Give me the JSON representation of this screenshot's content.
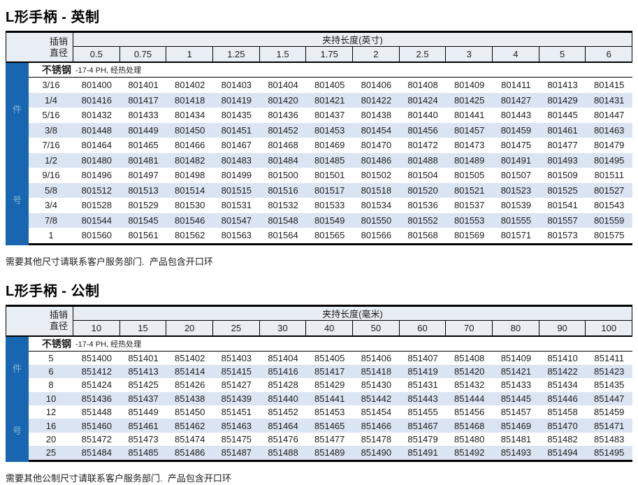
{
  "colors": {
    "sidebar_blue": "#1766af",
    "sidebar_text": "#85b7de",
    "header_bg": "#e9edf4",
    "stripe_bg": "#dbe4f2",
    "border": "#000000"
  },
  "sections": [
    {
      "title": "L形手柄 - 英制",
      "pin_label_line1": "插销",
      "pin_label_line2": "直径",
      "span_header": "夹持长度(英寸)",
      "columns": [
        "0.5",
        "0.75",
        "1",
        "1.25",
        "1.5",
        "1.75",
        "2",
        "2.5",
        "3",
        "4",
        "5",
        "6"
      ],
      "material": "不锈钢",
      "material_note": "-17-4 PH, 经热处理",
      "sidebar_top": "件",
      "sidebar_bottom": "号",
      "rows": [
        {
          "label": "3/16",
          "cells": [
            "801400",
            "801401",
            "801402",
            "801403",
            "801404",
            "801405",
            "801406",
            "801408",
            "801409",
            "801411",
            "801413",
            "801415"
          ]
        },
        {
          "label": "1/4",
          "cells": [
            "801416",
            "801417",
            "801418",
            "801419",
            "801420",
            "801421",
            "801422",
            "801424",
            "801425",
            "801427",
            "801429",
            "801431"
          ]
        },
        {
          "label": "5/16",
          "cells": [
            "801432",
            "801433",
            "801434",
            "801435",
            "801436",
            "801437",
            "801438",
            "801440",
            "801441",
            "801443",
            "801445",
            "801447"
          ]
        },
        {
          "label": "3/8",
          "cells": [
            "801448",
            "801449",
            "801450",
            "801451",
            "801452",
            "801453",
            "801454",
            "801456",
            "801457",
            "801459",
            "801461",
            "801463"
          ]
        },
        {
          "label": "7/16",
          "cells": [
            "801464",
            "801465",
            "801466",
            "801467",
            "801468",
            "801469",
            "801470",
            "801472",
            "801473",
            "801475",
            "801477",
            "801479"
          ]
        },
        {
          "label": "1/2",
          "cells": [
            "801480",
            "801481",
            "801482",
            "801483",
            "801484",
            "801485",
            "801486",
            "801488",
            "801489",
            "801491",
            "801493",
            "801495"
          ]
        },
        {
          "label": "9/16",
          "cells": [
            "801496",
            "801497",
            "801498",
            "801499",
            "801500",
            "801501",
            "801502",
            "801504",
            "801505",
            "801507",
            "801509",
            "801511"
          ]
        },
        {
          "label": "5/8",
          "cells": [
            "801512",
            "801513",
            "801514",
            "801515",
            "801516",
            "801517",
            "801518",
            "801520",
            "801521",
            "801523",
            "801525",
            "801527"
          ]
        },
        {
          "label": "3/4",
          "cells": [
            "801528",
            "801529",
            "801530",
            "801531",
            "801532",
            "801533",
            "801534",
            "801536",
            "801537",
            "801539",
            "801541",
            "801543"
          ]
        },
        {
          "label": "7/8",
          "cells": [
            "801544",
            "801545",
            "801546",
            "801547",
            "801548",
            "801549",
            "801550",
            "801552",
            "801553",
            "801555",
            "801557",
            "801559"
          ]
        },
        {
          "label": "1",
          "cells": [
            "801560",
            "801561",
            "801562",
            "801563",
            "801564",
            "801565",
            "801566",
            "801568",
            "801569",
            "801571",
            "801573",
            "801575"
          ]
        }
      ],
      "footer": "需要其他尺寸请联系客户服务部门.  产品包含开口环"
    },
    {
      "title": "L形手柄 - 公制",
      "pin_label_line1": "插销",
      "pin_label_line2": "直径",
      "span_header": "夹持长度(毫米)",
      "columns": [
        "10",
        "15",
        "20",
        "25",
        "30",
        "40",
        "50",
        "60",
        "70",
        "80",
        "90",
        "100"
      ],
      "material": "不锈钢",
      "material_note": "-17-4 PH, 经热处理",
      "sidebar_top": "件",
      "sidebar_bottom": "号",
      "rows": [
        {
          "label": "5",
          "cells": [
            "851400",
            "851401",
            "851402",
            "851403",
            "851404",
            "851405",
            "851406",
            "851407",
            "851408",
            "851409",
            "851410",
            "851411"
          ]
        },
        {
          "label": "6",
          "cells": [
            "851412",
            "851413",
            "851414",
            "851415",
            "851416",
            "851417",
            "851418",
            "851419",
            "851420",
            "851421",
            "851422",
            "851423"
          ]
        },
        {
          "label": "8",
          "cells": [
            "851424",
            "851425",
            "851426",
            "851427",
            "851428",
            "851429",
            "851430",
            "851431",
            "851432",
            "851433",
            "851434",
            "851435"
          ]
        },
        {
          "label": "10",
          "cells": [
            "851436",
            "851437",
            "851438",
            "851439",
            "851440",
            "851441",
            "851442",
            "851443",
            "851444",
            "851445",
            "851446",
            "851447"
          ]
        },
        {
          "label": "12",
          "cells": [
            "851448",
            "851449",
            "851450",
            "851451",
            "851452",
            "851453",
            "851454",
            "851455",
            "851456",
            "851457",
            "851458",
            "851459"
          ]
        },
        {
          "label": "16",
          "cells": [
            "851460",
            "851461",
            "851462",
            "851463",
            "851464",
            "851465",
            "851466",
            "851467",
            "851468",
            "851469",
            "851470",
            "851471"
          ]
        },
        {
          "label": "20",
          "cells": [
            "851472",
            "851473",
            "851474",
            "851475",
            "851476",
            "851477",
            "851478",
            "851479",
            "851480",
            "851481",
            "851482",
            "851483"
          ]
        },
        {
          "label": "25",
          "cells": [
            "851484",
            "851485",
            "851486",
            "851487",
            "851488",
            "851489",
            "851490",
            "851491",
            "851492",
            "851493",
            "851494",
            "851495"
          ]
        }
      ],
      "footer": "需要其他公制尺寸请联系客户服务部门.  产品包含开口环"
    }
  ]
}
